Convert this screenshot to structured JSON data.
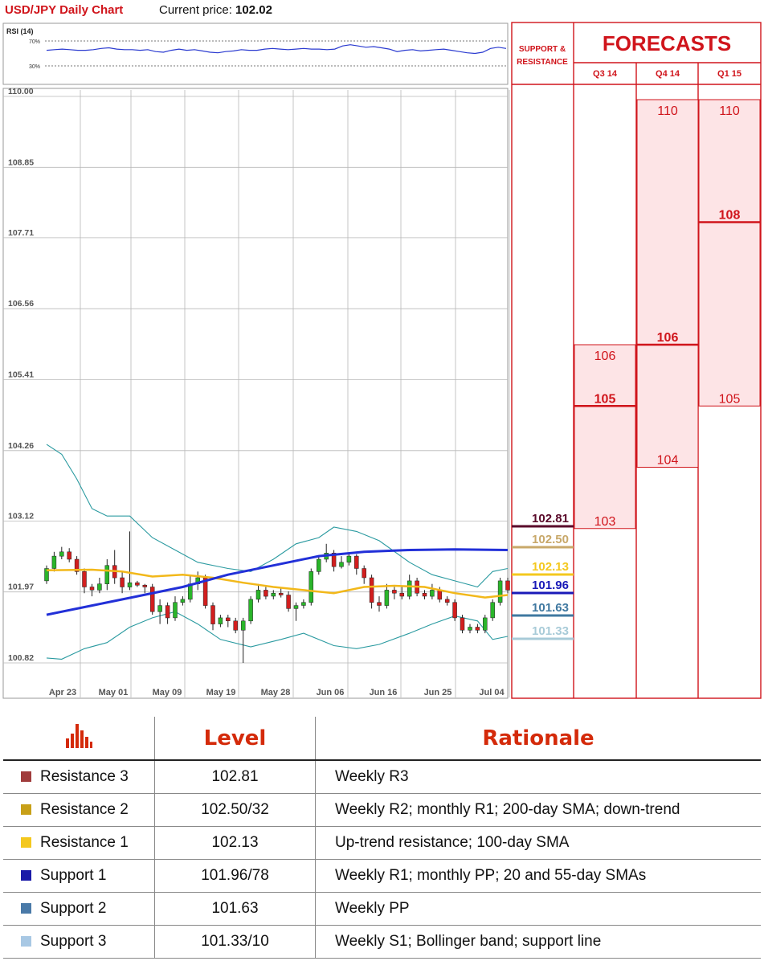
{
  "header": {
    "title": "USD/JPY Daily Chart",
    "price_label": "Current price:",
    "price_value": "102.02"
  },
  "rsi": {
    "label": "RSI (14)",
    "upper_label": "70%",
    "lower_label": "30%",
    "values": [
      55,
      56,
      57,
      56,
      55,
      55,
      56,
      58,
      59,
      57,
      56,
      56,
      55,
      56,
      53,
      52,
      55,
      57,
      55,
      56,
      54,
      52,
      51,
      53,
      54,
      56,
      55,
      55,
      57,
      58,
      57,
      56,
      57,
      58,
      57,
      57,
      56,
      57,
      62,
      64,
      62,
      60,
      61,
      59,
      57,
      53,
      55,
      56,
      54,
      55,
      56,
      57,
      55,
      53,
      51,
      50,
      52,
      58,
      60,
      58
    ]
  },
  "chart_data": {
    "type": "candlestick",
    "title": "USD/JPY Daily Chart",
    "y_ticks": [
      "110.00",
      "108.85",
      "107.71",
      "106.56",
      "105.41",
      "104.26",
      "103.12",
      "101.97",
      "100.82"
    ],
    "ylim": [
      100.82,
      110.0
    ],
    "x_ticks": [
      "Apr 23",
      "May 01",
      "May 09",
      "May 19",
      "May 28",
      "Jun 06",
      "Jun 16",
      "Jun 25",
      "Jul 04"
    ],
    "candles": [
      [
        102.15,
        102.35,
        102.4,
        102.1
      ],
      [
        102.35,
        102.55,
        102.62,
        102.3
      ],
      [
        102.55,
        102.62,
        102.7,
        102.5
      ],
      [
        102.62,
        102.5,
        102.68,
        102.45
      ],
      [
        102.5,
        102.3,
        102.55,
        102.25
      ],
      [
        102.3,
        102.05,
        102.35,
        101.95
      ],
      [
        102.05,
        102.0,
        102.1,
        101.9
      ],
      [
        102.0,
        102.1,
        102.2,
        101.95
      ],
      [
        102.1,
        102.4,
        102.5,
        102.0
      ],
      [
        102.4,
        102.2,
        102.65,
        102.1
      ],
      [
        102.2,
        102.05,
        102.3,
        101.95
      ],
      [
        102.05,
        102.12,
        102.95,
        102.0
      ],
      [
        102.12,
        102.08,
        102.15,
        102.05
      ],
      [
        102.08,
        102.05,
        102.1,
        101.95
      ],
      [
        102.05,
        101.65,
        102.1,
        101.6
      ],
      [
        101.65,
        101.75,
        101.85,
        101.45
      ],
      [
        101.75,
        101.55,
        101.8,
        101.45
      ],
      [
        101.55,
        101.8,
        101.9,
        101.5
      ],
      [
        101.8,
        101.85,
        101.9,
        101.75
      ],
      [
        101.85,
        102.1,
        102.25,
        101.8
      ],
      [
        102.1,
        102.2,
        102.3,
        102.0
      ],
      [
        102.2,
        101.75,
        102.25,
        101.7
      ],
      [
        101.75,
        101.45,
        101.8,
        101.35
      ],
      [
        101.45,
        101.55,
        101.6,
        101.4
      ],
      [
        101.55,
        101.5,
        101.6,
        101.4
      ],
      [
        101.5,
        101.35,
        101.55,
        101.3
      ],
      [
        101.35,
        101.5,
        101.55,
        100.82
      ],
      [
        101.5,
        101.85,
        101.9,
        101.45
      ],
      [
        101.85,
        102.0,
        102.1,
        101.8
      ],
      [
        102.0,
        101.9,
        102.05,
        101.85
      ],
      [
        101.9,
        101.95,
        102.0,
        101.85
      ],
      [
        101.95,
        101.92,
        102.05,
        101.88
      ],
      [
        101.92,
        101.7,
        101.98,
        101.65
      ],
      [
        101.7,
        101.75,
        101.8,
        101.5
      ],
      [
        101.75,
        101.8,
        101.85,
        101.7
      ],
      [
        101.8,
        102.3,
        102.35,
        101.75
      ],
      [
        102.3,
        102.5,
        102.55,
        102.25
      ],
      [
        102.5,
        102.6,
        102.75,
        102.45
      ],
      [
        102.6,
        102.38,
        102.65,
        102.3
      ],
      [
        102.38,
        102.45,
        102.55,
        102.35
      ],
      [
        102.45,
        102.55,
        102.6,
        102.4
      ],
      [
        102.55,
        102.35,
        102.58,
        102.25
      ],
      [
        102.35,
        102.2,
        102.4,
        102.1
      ],
      [
        102.2,
        101.8,
        102.25,
        101.7
      ],
      [
        101.8,
        101.75,
        101.9,
        101.65
      ],
      [
        101.75,
        102.0,
        102.1,
        101.7
      ],
      [
        102.0,
        101.95,
        102.05,
        101.85
      ],
      [
        101.95,
        101.9,
        102.05,
        101.85
      ],
      [
        101.9,
        102.15,
        102.25,
        101.85
      ],
      [
        102.15,
        101.95,
        102.2,
        101.9
      ],
      [
        101.95,
        101.9,
        102.0,
        101.85
      ],
      [
        101.9,
        102.0,
        102.1,
        101.85
      ],
      [
        102.0,
        101.85,
        102.05,
        101.8
      ],
      [
        101.85,
        101.8,
        101.9,
        101.75
      ],
      [
        101.8,
        101.55,
        101.85,
        101.5
      ],
      [
        101.55,
        101.35,
        101.6,
        101.3
      ],
      [
        101.35,
        101.4,
        101.45,
        101.3
      ],
      [
        101.4,
        101.35,
        101.45,
        101.3
      ],
      [
        101.35,
        101.55,
        101.6,
        101.3
      ],
      [
        101.55,
        101.8,
        101.85,
        101.5
      ],
      [
        101.8,
        102.15,
        102.2,
        101.75
      ],
      [
        102.15,
        102.0,
        102.2,
        101.95
      ]
    ],
    "sma_blue": [
      [
        0,
        101.6
      ],
      [
        6,
        101.75
      ],
      [
        12,
        101.9
      ],
      [
        18,
        102.05
      ],
      [
        24,
        102.25
      ],
      [
        30,
        102.4
      ],
      [
        36,
        102.55
      ],
      [
        42,
        102.62
      ],
      [
        48,
        102.65
      ],
      [
        54,
        102.66
      ],
      [
        61,
        102.65
      ]
    ],
    "sma_orange": [
      [
        0,
        102.32
      ],
      [
        6,
        102.33
      ],
      [
        10,
        102.3
      ],
      [
        14,
        102.22
      ],
      [
        18,
        102.25
      ],
      [
        22,
        102.2
      ],
      [
        26,
        102.12
      ],
      [
        30,
        102.05
      ],
      [
        34,
        102.0
      ],
      [
        38,
        101.95
      ],
      [
        42,
        102.05
      ],
      [
        46,
        102.07
      ],
      [
        50,
        102.05
      ],
      [
        54,
        101.95
      ],
      [
        58,
        101.88
      ],
      [
        61,
        101.92
      ]
    ],
    "bb_upper": [
      [
        0,
        104.36
      ],
      [
        2,
        104.2
      ],
      [
        4,
        103.8
      ],
      [
        6,
        103.32
      ],
      [
        8,
        103.2
      ],
      [
        11,
        103.2
      ],
      [
        14,
        102.85
      ],
      [
        17,
        102.65
      ],
      [
        20,
        102.45
      ],
      [
        24,
        102.35
      ],
      [
        27,
        102.3
      ],
      [
        30,
        102.5
      ],
      [
        33,
        102.75
      ],
      [
        36,
        102.85
      ],
      [
        38,
        103.02
      ],
      [
        41,
        102.95
      ],
      [
        44,
        102.8
      ],
      [
        48,
        102.45
      ],
      [
        51,
        102.25
      ],
      [
        54,
        102.15
      ],
      [
        57,
        102.05
      ],
      [
        59,
        102.3
      ],
      [
        61,
        102.35
      ]
    ],
    "bb_lower": [
      [
        0,
        100.9
      ],
      [
        2,
        100.88
      ],
      [
        5,
        101.05
      ],
      [
        8,
        101.15
      ],
      [
        11,
        101.4
      ],
      [
        14,
        101.55
      ],
      [
        17,
        101.65
      ],
      [
        20,
        101.45
      ],
      [
        23,
        101.2
      ],
      [
        27,
        101.08
      ],
      [
        31,
        101.2
      ],
      [
        34,
        101.3
      ],
      [
        38,
        101.1
      ],
      [
        41,
        101.05
      ],
      [
        44,
        101.12
      ],
      [
        48,
        101.3
      ],
      [
        51,
        101.45
      ],
      [
        54,
        101.58
      ],
      [
        57,
        101.5
      ],
      [
        59,
        101.2
      ],
      [
        61,
        101.25
      ]
    ],
    "levels": [
      {
        "value": "102.81",
        "color": "#5a0a2a"
      },
      {
        "value": "102.50",
        "color": "#c8a86a"
      },
      {
        "value": "102.13",
        "color": "#f4c81e"
      },
      {
        "value": "101.96",
        "color": "#1a1ab8"
      },
      {
        "value": "101.63",
        "color": "#3f78a0"
      },
      {
        "value": "101.33",
        "color": "#a8cbd8"
      }
    ]
  },
  "forecasts": {
    "title": "FORECASTS",
    "sr_label_1": "SUPPORT &",
    "sr_label_2": "RESISTANCE",
    "columns": [
      {
        "name": "Q3 14",
        "top": "106",
        "mid": "105",
        "bottom": "103",
        "hi": 106,
        "mid_val": 105,
        "lo": 103
      },
      {
        "name": "Q4 14",
        "top": "110",
        "mid": "106",
        "bottom": "104",
        "hi": 110,
        "mid_val": 106,
        "lo": 104
      },
      {
        "name": "Q1 15",
        "top": "110",
        "mid": "108",
        "bottom": "105",
        "hi": 110,
        "mid_val": 108,
        "lo": 105
      }
    ]
  },
  "table": {
    "head_level": "Level",
    "head_rationale": "Rationale",
    "rows": [
      {
        "name": "Resistance 3",
        "level": "102.81",
        "rationale": "Weekly R3",
        "color": "#a03c3c"
      },
      {
        "name": "Resistance 2",
        "level": "102.50/32",
        "rationale": "Weekly R2; monthly R1; 200-day SMA; down-trend",
        "color": "#c8a018"
      },
      {
        "name": "Resistance 1",
        "level": "102.13",
        "rationale": "Up-trend resistance; 100-day SMA",
        "color": "#f4c81e"
      },
      {
        "name": "Support 1",
        "level": "101.96/78",
        "rationale": "Weekly R1; monthly PP; 20 and 55-day SMAs",
        "color": "#1a1aa8"
      },
      {
        "name": "Support 2",
        "level": "101.63",
        "rationale": "Weekly PP",
        "color": "#4a7aa8"
      },
      {
        "name": "Support 3",
        "level": "101.33/10",
        "rationale": "Weekly S1; Bollinger band; support line",
        "color": "#a8c8e4"
      }
    ]
  }
}
